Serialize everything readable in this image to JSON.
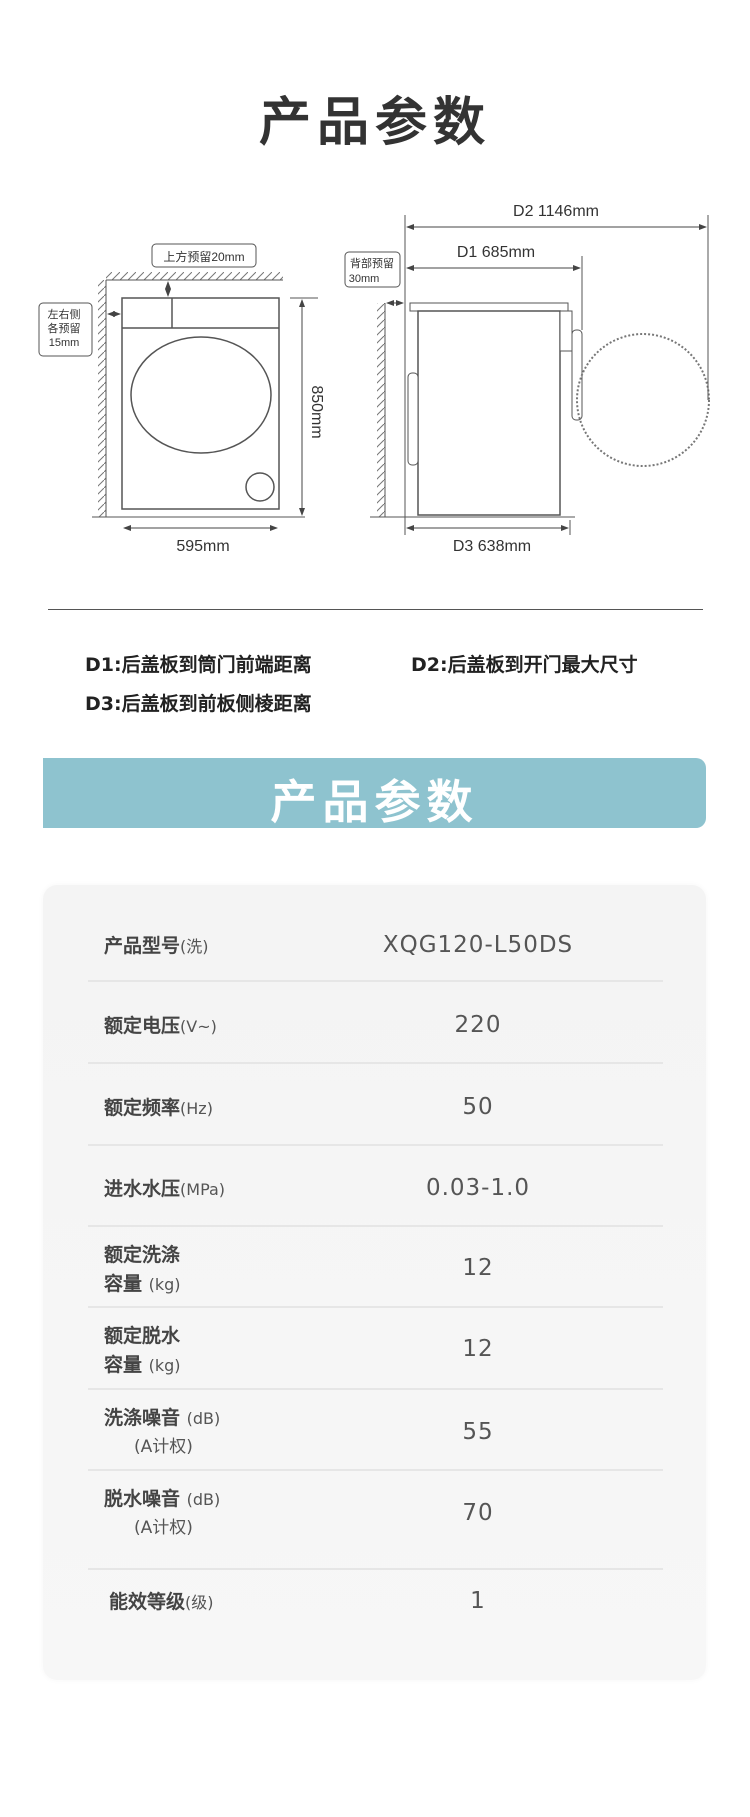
{
  "title": "产品参数",
  "diagram": {
    "top_clearance": "上方预留20mm",
    "side_clearance": [
      "左右侧",
      "各预留",
      "15mm"
    ],
    "back_clearance": [
      "背部预留",
      "30mm"
    ],
    "height": "850mm",
    "width": "595mm",
    "d1": "D1 685mm",
    "d2": "D2 1146mm",
    "d3": "D3 638mm"
  },
  "legend": {
    "d1": "D1:后盖板到筒门前端距离",
    "d2": "D2:后盖板到开门最大尺寸",
    "d3": "D3:后盖板到前板侧棱距离"
  },
  "banner_title": "产品参数",
  "specs": [
    {
      "label": "产品型号",
      "unit": "(洗)",
      "value": "XQG120-L50DS"
    },
    {
      "label": "额定电压",
      "unit": "(V~)",
      "value": "220"
    },
    {
      "label": "额定频率",
      "unit": "(Hz)",
      "value": "50"
    },
    {
      "label": "进水水压",
      "unit": "(MPa)",
      "value": "0.03-1.0"
    },
    {
      "label": "额定洗涤",
      "label2": "容量",
      "unit": "(kg)",
      "value": "12"
    },
    {
      "label": "额定脱水",
      "label2": "容量",
      "unit": "(kg)",
      "value": "12"
    },
    {
      "label": "洗涤噪音",
      "unit": "(dB)",
      "sub": "(A计权)",
      "value": "55"
    },
    {
      "label": "脱水噪音",
      "unit": "(dB)",
      "sub": "(A计权)",
      "value": "70"
    },
    {
      "label": "能效等级",
      "unit": "(级)",
      "value": "1"
    }
  ]
}
